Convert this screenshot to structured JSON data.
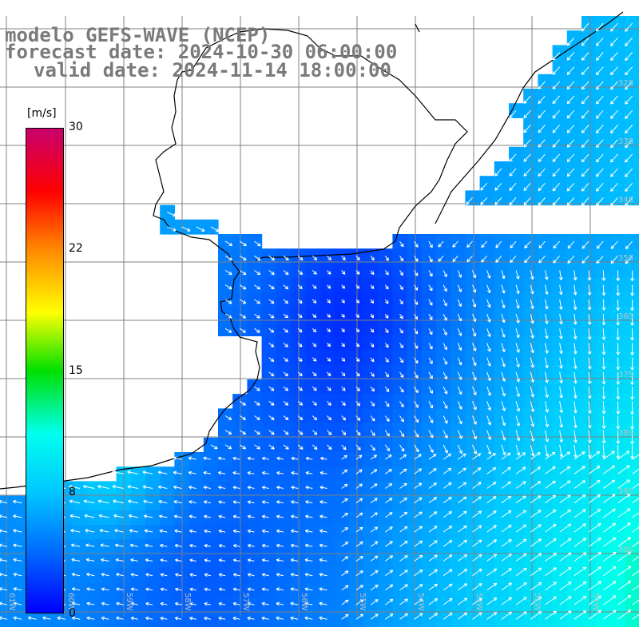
{
  "header": {
    "model_line": "modelo GEFS-WAVE (NCEP)",
    "forecast_line": "forecast date: 2024-10-30 06:00:00",
    "valid_line": "valid date: 2024-11-14 18:00:00"
  },
  "colorbar": {
    "unit": "[m/s]",
    "ticks": [
      "30",
      "22",
      "15",
      "8",
      "0"
    ],
    "tick_values": [
      30,
      22,
      15,
      8,
      0
    ],
    "range": [
      0,
      30
    ],
    "colors": [
      "#0000ff",
      "#0066ff",
      "#00c8ff",
      "#00ffee",
      "#00e000",
      "#ffff00",
      "#ff8800",
      "#ff0000",
      "#c8006e"
    ]
  },
  "grid": {
    "lat_labels": [
      "32S",
      "33S",
      "34S",
      "35S",
      "36S",
      "37S",
      "38S",
      "39S",
      "40S"
    ],
    "lon_labels": [
      "61W",
      "60W",
      "59W",
      "58W",
      "57W",
      "56W",
      "55W",
      "54W",
      "53W",
      "52W",
      "51W"
    ]
  },
  "map": {
    "colors": {
      "land": "#ffffff",
      "coast": "#000000",
      "grid": "#808080",
      "arrow": "#ffffff"
    }
  }
}
